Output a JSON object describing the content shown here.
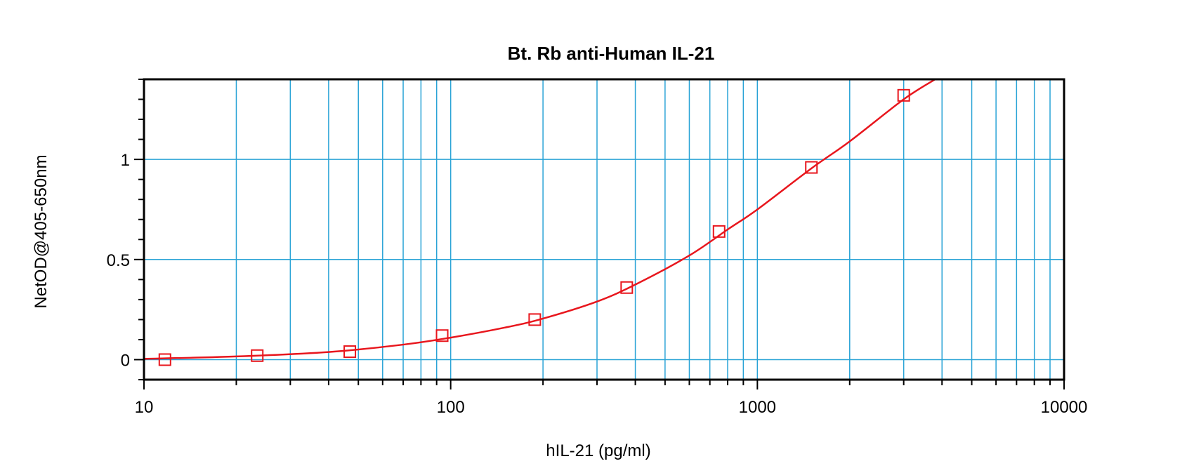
{
  "chart_data": {
    "type": "scatter",
    "title": "Bt. Rb anti-Human IL-21",
    "xlabel": "hIL-21 (pg/ml)",
    "ylabel": "NetOD@405-650nm",
    "x_scale": "log",
    "xlim": [
      10,
      10000
    ],
    "ylim": [
      -0.1,
      1.4
    ],
    "x_ticks": [
      10,
      100,
      1000,
      10000
    ],
    "x_tick_labels": [
      "10",
      "100",
      "1000",
      "10000"
    ],
    "y_ticks": [
      0,
      0.5,
      1
    ],
    "y_tick_labels": [
      "0",
      "0.5",
      "1"
    ],
    "grid": true,
    "series": [
      {
        "marker": "square-open",
        "color": "#e8161d",
        "points": [
          {
            "x": 11.7,
            "y": 0.0
          },
          {
            "x": 23.4,
            "y": 0.02
          },
          {
            "x": 46.9,
            "y": 0.04
          },
          {
            "x": 93.8,
            "y": 0.12
          },
          {
            "x": 188,
            "y": 0.2
          },
          {
            "x": 375,
            "y": 0.36
          },
          {
            "x": 750,
            "y": 0.64
          },
          {
            "x": 1500,
            "y": 0.96
          },
          {
            "x": 3000,
            "y": 1.32
          }
        ],
        "fit_curve": [
          {
            "x": 10,
            "y": 0.004
          },
          {
            "x": 20,
            "y": 0.016
          },
          {
            "x": 40,
            "y": 0.038
          },
          {
            "x": 70,
            "y": 0.075
          },
          {
            "x": 100,
            "y": 0.11
          },
          {
            "x": 150,
            "y": 0.16
          },
          {
            "x": 200,
            "y": 0.205
          },
          {
            "x": 300,
            "y": 0.29
          },
          {
            "x": 400,
            "y": 0.375
          },
          {
            "x": 600,
            "y": 0.52
          },
          {
            "x": 800,
            "y": 0.65
          },
          {
            "x": 1000,
            "y": 0.75
          },
          {
            "x": 1500,
            "y": 0.955
          },
          {
            "x": 2000,
            "y": 1.09
          },
          {
            "x": 3000,
            "y": 1.3
          },
          {
            "x": 3800,
            "y": 1.415
          }
        ]
      }
    ],
    "colors": {
      "grid": "#29a3d6",
      "series": "#e8161d",
      "frame": "#000000"
    }
  }
}
